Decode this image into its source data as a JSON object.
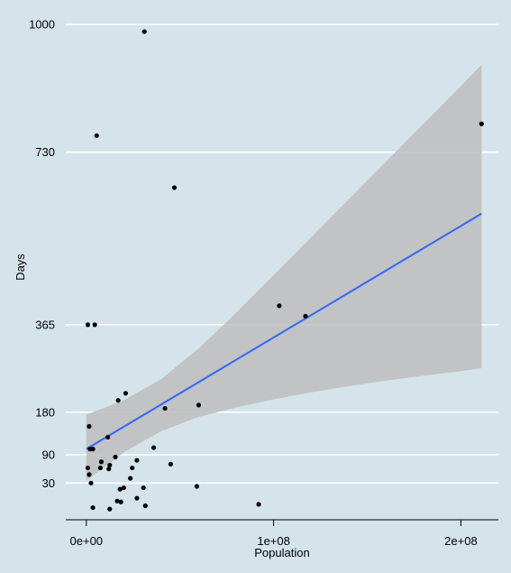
{
  "chart_data": {
    "type": "scatter",
    "title": "",
    "xlabel": "Population",
    "ylabel": "Days",
    "xlim": [
      -10000000,
      220000000
    ],
    "ylim": [
      -40,
      1010
    ],
    "grid": "horizontal",
    "x_ticks": [
      {
        "value": 0,
        "label": "0e+00"
      },
      {
        "value": 100000000,
        "label": "1e+08"
      },
      {
        "value": 200000000,
        "label": "2e+08"
      }
    ],
    "y_ticks": [
      {
        "value": 30,
        "label": "30"
      },
      {
        "value": 90,
        "label": "90"
      },
      {
        "value": 180,
        "label": "180"
      },
      {
        "value": 365,
        "label": "365"
      },
      {
        "value": 730,
        "label": "730"
      },
      {
        "value": 1000,
        "label": "1000"
      }
    ],
    "points": [
      {
        "x": 31000000,
        "y": 985
      },
      {
        "x": 5500000,
        "y": 765
      },
      {
        "x": 47000000,
        "y": 655
      },
      {
        "x": 211000000,
        "y": 790
      },
      {
        "x": 103000000,
        "y": 405
      },
      {
        "x": 117000000,
        "y": 383
      },
      {
        "x": 800000,
        "y": 365
      },
      {
        "x": 4500000,
        "y": 365
      },
      {
        "x": 17000000,
        "y": 205
      },
      {
        "x": 21000000,
        "y": 220
      },
      {
        "x": 42000000,
        "y": 188
      },
      {
        "x": 60000000,
        "y": 195
      },
      {
        "x": 1500000,
        "y": 150
      },
      {
        "x": 11500000,
        "y": 127
      },
      {
        "x": 2000000,
        "y": 102
      },
      {
        "x": 3500000,
        "y": 102
      },
      {
        "x": 36000000,
        "y": 105
      },
      {
        "x": 15500000,
        "y": 85
      },
      {
        "x": 27000000,
        "y": 78
      },
      {
        "x": 8000000,
        "y": 75
      },
      {
        "x": 45000000,
        "y": 70
      },
      {
        "x": 12500000,
        "y": 68
      },
      {
        "x": 800000,
        "y": 62
      },
      {
        "x": 7500000,
        "y": 62
      },
      {
        "x": 24500000,
        "y": 62
      },
      {
        "x": 12000000,
        "y": 60
      },
      {
        "x": 23500000,
        "y": 40
      },
      {
        "x": 1500000,
        "y": 48
      },
      {
        "x": 20000000,
        "y": 20
      },
      {
        "x": 18000000,
        "y": 17
      },
      {
        "x": 30500000,
        "y": 20
      },
      {
        "x": 59000000,
        "y": 23
      },
      {
        "x": 2500000,
        "y": 30
      },
      {
        "x": 27000000,
        "y": -2
      },
      {
        "x": 16500000,
        "y": -8
      },
      {
        "x": 18500000,
        "y": -10
      },
      {
        "x": 3500000,
        "y": -22
      },
      {
        "x": 12500000,
        "y": -25
      },
      {
        "x": 31500000,
        "y": -18
      },
      {
        "x": 92000000,
        "y": -15
      }
    ],
    "trend_line": {
      "x": [
        0,
        211000000
      ],
      "y": [
        102,
        600
      ]
    },
    "confidence_band": {
      "x": [
        0,
        20000000,
        40000000,
        60000000,
        80000000,
        100000000,
        120000000,
        140000000,
        160000000,
        180000000,
        200000000,
        211000000
      ],
      "lower": [
        35,
        95,
        140,
        170,
        190,
        207,
        222,
        235,
        247,
        257,
        267,
        273
      ],
      "upper": [
        175,
        205,
        250,
        315,
        390,
        470,
        550,
        630,
        710,
        790,
        870,
        915
      ]
    },
    "colors": {
      "background": "#d5e4eb",
      "grid": "#ffffff",
      "points": "#000000",
      "trend_line": "#3366ff",
      "band": "#bdbdbd",
      "axis": "#000000"
    }
  }
}
